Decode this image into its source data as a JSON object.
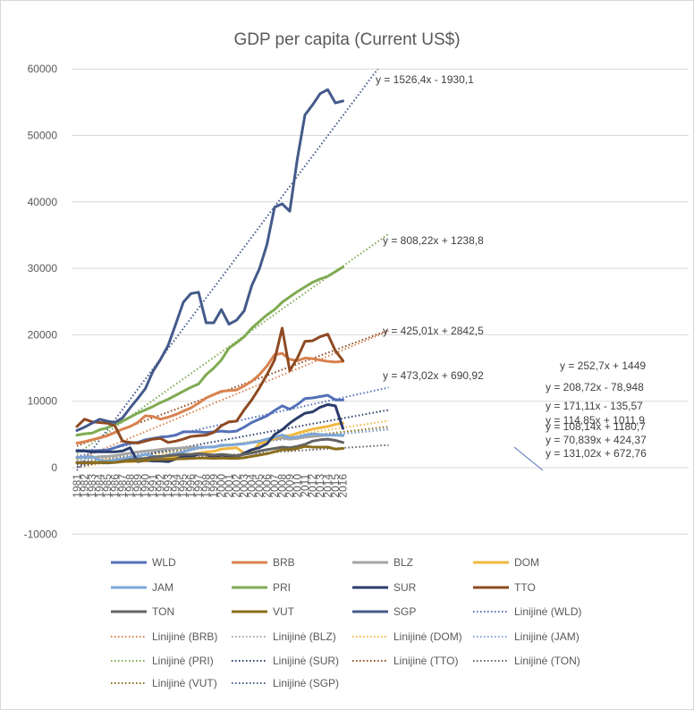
{
  "chart_data": {
    "type": "line",
    "title": "GDP per capita (Current US$)",
    "ylim": [
      -10000,
      60000
    ],
    "yticks": [
      -10000,
      0,
      10000,
      20000,
      30000,
      40000,
      50000,
      60000
    ],
    "x": [
      "1981",
      "1982",
      "1983",
      "1984",
      "1985",
      "1986",
      "1987",
      "1988",
      "1989",
      "1990",
      "1991",
      "1992",
      "1993",
      "1994",
      "1995",
      "1996",
      "1997",
      "1998",
      "1999",
      "2000",
      "2001",
      "2002",
      "2003",
      "2004",
      "2005",
      "2006",
      "2007",
      "2008",
      "2009",
      "2010",
      "2011",
      "2012",
      "2013",
      "2014",
      "2015",
      "2016"
    ],
    "series": [
      {
        "name": "WLD",
        "color": "#5470b8",
        "values": [
          2600,
          2550,
          2550,
          2600,
          2650,
          3000,
          3400,
          3700,
          3800,
          4200,
          4400,
          4600,
          4700,
          4900,
          5400,
          5400,
          5400,
          5300,
          5400,
          5500,
          5400,
          5500,
          6100,
          6800,
          7300,
          7800,
          8600,
          9300,
          8800,
          9500,
          10400,
          10500,
          10700,
          10900,
          10200,
          10200
        ]
      },
      {
        "name": "BRB",
        "color": "#d9824f",
        "values": [
          3700,
          3900,
          4200,
          4500,
          4800,
          5300,
          5800,
          6200,
          6800,
          7800,
          7700,
          7300,
          7600,
          8000,
          8500,
          9000,
          9700,
          10500,
          11000,
          11500,
          11600,
          11700,
          12300,
          13000,
          14000,
          15300,
          17000,
          17200,
          16300,
          16100,
          16500,
          16400,
          16200,
          16000,
          15900,
          16000
        ]
      },
      {
        "name": "BLZ",
        "color": "#a5a5a5",
        "values": [
          1600,
          1550,
          1550,
          1650,
          1700,
          1800,
          2000,
          2200,
          2350,
          2500,
          2600,
          2750,
          2850,
          2900,
          3000,
          3050,
          3050,
          3100,
          3150,
          3300,
          3400,
          3500,
          3600,
          3800,
          3900,
          4100,
          4300,
          4500,
          4300,
          4400,
          4600,
          4700,
          4800,
          4900,
          4900,
          4800
        ]
      },
      {
        "name": "DOM",
        "color": "#f0b840",
        "values": [
          1400,
          1600,
          1700,
          1100,
          1100,
          1050,
          950,
          900,
          1000,
          1000,
          1150,
          1300,
          1450,
          1700,
          1850,
          2000,
          2150,
          2350,
          2450,
          2800,
          2900,
          3000,
          2200,
          2300,
          3600,
          3900,
          4400,
          4800,
          4800,
          5200,
          5500,
          5800,
          6000,
          6200,
          6500,
          6700
        ]
      },
      {
        "name": "JAM",
        "color": "#7da7d9",
        "values": [
          1500,
          1600,
          1650,
          1100,
          1000,
          1200,
          1350,
          1550,
          1700,
          2000,
          1750,
          1600,
          1900,
          2100,
          2400,
          2700,
          3000,
          3100,
          3100,
          3400,
          3400,
          3500,
          3600,
          3800,
          4000,
          4300,
          4600,
          4900,
          4500,
          4600,
          4900,
          5100,
          5000,
          4900,
          4900,
          4900
        ]
      },
      {
        "name": "PRI",
        "color": "#7fab52",
        "values": [
          4900,
          5100,
          5200,
          5700,
          6000,
          6500,
          7000,
          7600,
          8200,
          8700,
          9200,
          9800,
          10300,
          10900,
          11500,
          12100,
          12600,
          14000,
          15000,
          16200,
          18000,
          18800,
          19700,
          21000,
          22000,
          23000,
          23800,
          24900,
          25700,
          26500,
          27200,
          27900,
          28400,
          28800,
          29500,
          30200
        ]
      },
      {
        "name": "SUR",
        "color": "#2b3d6b",
        "values": [
          2500,
          2500,
          2400,
          2400,
          2400,
          2400,
          2500,
          3000,
          900,
          1100,
          1000,
          1000,
          900,
          1300,
          1700,
          1700,
          2000,
          2000,
          1500,
          1900,
          1700,
          1600,
          2200,
          2700,
          3000,
          3600,
          5000,
          5700,
          6700,
          7500,
          8200,
          8400,
          9100,
          9500,
          9300,
          5900
        ]
      },
      {
        "name": "TTO",
        "color": "#8e4a22",
        "values": [
          6200,
          7300,
          6900,
          6800,
          6700,
          6300,
          4000,
          3800,
          3700,
          4000,
          4300,
          4400,
          3800,
          4000,
          4300,
          4700,
          4800,
          4900,
          5300,
          6300,
          6900,
          7000,
          8700,
          10200,
          12000,
          14000,
          16200,
          21000,
          14600,
          16500,
          19000,
          19100,
          19700,
          20100,
          17600,
          16100
        ]
      },
      {
        "name": "TON",
        "color": "#636363",
        "values": [
          800,
          800,
          800,
          750,
          700,
          800,
          1000,
          1200,
          1300,
          1400,
          1600,
          1700,
          1800,
          1900,
          2000,
          2000,
          2100,
          2000,
          1900,
          2000,
          1900,
          1800,
          2000,
          2200,
          2500,
          2700,
          2900,
          3100,
          3000,
          3200,
          3500,
          4000,
          4200,
          4300,
          4100,
          3800
        ]
      },
      {
        "name": "VUT",
        "color": "#8b6d1e",
        "values": [
          700,
          700,
          700,
          800,
          800,
          800,
          900,
          1000,
          1000,
          1100,
          1200,
          1250,
          1250,
          1300,
          1350,
          1400,
          1450,
          1450,
          1400,
          1450,
          1400,
          1400,
          1500,
          1700,
          1900,
          2100,
          2400,
          2700,
          2700,
          2900,
          3200,
          3100,
          3100,
          3100,
          2800,
          2900
        ]
      },
      {
        "name": "SGP",
        "color": "#445a8a",
        "values": [
          5600,
          6100,
          6700,
          7300,
          7000,
          6800,
          7500,
          9000,
          10400,
          11900,
          14500,
          16300,
          18400,
          21600,
          24900,
          26200,
          26400,
          21800,
          21800,
          23800,
          21600,
          22200,
          23600,
          27400,
          29900,
          33600,
          39200,
          39700,
          38600,
          46500,
          53100,
          54600,
          56300,
          56900,
          54900,
          55200
        ]
      }
    ],
    "trendlines": [
      {
        "name": "Linijinė (WLD)",
        "color": "#5470b8",
        "equation": "y = 252,7x + 1449",
        "slope": 252.7,
        "intercept": 1449
      },
      {
        "name": "Linijinė (BRB)",
        "color": "#d9824f",
        "equation": "y = 473,02x + 690,92",
        "slope": 473.02,
        "intercept": 690.92
      },
      {
        "name": "Linijinė (BLZ)",
        "color": "#a5a5a5",
        "equation": "y = 108,14x + 1180,7",
        "slope": 108.14,
        "intercept": 1180.7
      },
      {
        "name": "Linijinė (DOM)",
        "color": "#f0b840",
        "equation": "y = 171,11x - 135,57",
        "slope": 171.11,
        "intercept": -135.57
      },
      {
        "name": "Linijinė (JAM)",
        "color": "#7da7d9",
        "equation": "y = 114,85x + 1011,9",
        "slope": 114.85,
        "intercept": 1011.9
      },
      {
        "name": "Linijinė (PRI)",
        "color": "#7fab52",
        "equation": "y = 808,22x + 1238,8",
        "slope": 808.22,
        "intercept": 1238.8
      },
      {
        "name": "Linijinė (SUR)",
        "color": "#2b3d6b",
        "equation": "y = 208,72x - 78,948",
        "slope": 208.72,
        "intercept": -78.948
      },
      {
        "name": "Linijinė (TTO)",
        "color": "#8e4a22",
        "equation": "y = 425,01x + 2842,5",
        "slope": 425.01,
        "intercept": 2842.5
      },
      {
        "name": "Linijinė (TON)",
        "color": "#636363",
        "equation": "y = 70,839x + 424,37",
        "slope": 70.839,
        "intercept": 424.37
      },
      {
        "name": "Linijinė (VUT)",
        "color": "#8b6d1e",
        "equation": "y = 131,02x + 672,76",
        "slope": 131.02,
        "intercept": 672.76
      },
      {
        "name": "Linijinė (SGP)",
        "color": "#445a8a",
        "equation": "y = 1526,4x - 1930,1",
        "slope": 1526.4,
        "intercept": -1930.1
      }
    ],
    "legend": "bottom"
  }
}
